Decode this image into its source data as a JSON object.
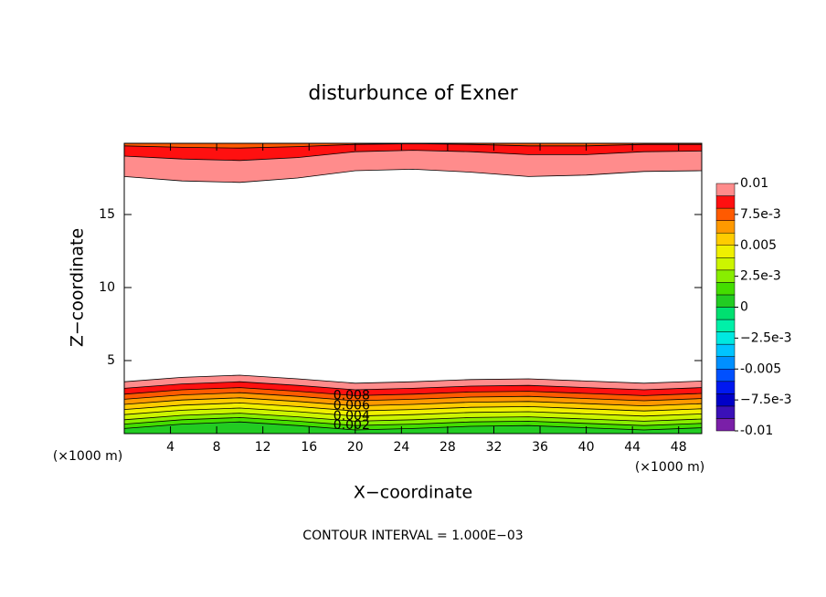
{
  "chart_data": {
    "type": "contour",
    "title": "disturbunce of Exner",
    "xlabel": "X−coordinate",
    "ylabel": "Z−coordinate",
    "unit_label": "(×1000 m)",
    "footnote": "CONTOUR INTERVAL = 1.000E−03",
    "xlim": [
      0,
      50
    ],
    "ylim": [
      0,
      19.875
    ],
    "xticks": [
      4,
      8,
      12,
      16,
      20,
      24,
      28,
      32,
      36,
      40,
      44,
      48
    ],
    "yticks": [
      5,
      10,
      15
    ],
    "x": [
      0,
      5,
      10,
      15,
      20,
      25,
      30,
      35,
      40,
      45,
      50
    ],
    "lower_contours": [
      {
        "level": 0.001,
        "z": [
          0.35,
          0.65,
          0.8,
          0.55,
          0.25,
          0.35,
          0.5,
          0.55,
          0.4,
          0.25,
          0.4
        ]
      },
      {
        "level": 0.002,
        "labeled": true,
        "z": [
          0.65,
          0.95,
          1.1,
          0.85,
          0.55,
          0.65,
          0.8,
          0.85,
          0.7,
          0.55,
          0.7
        ]
      },
      {
        "level": 0.003,
        "z": [
          0.95,
          1.25,
          1.4,
          1.15,
          0.85,
          0.95,
          1.1,
          1.15,
          1.0,
          0.85,
          1.0
        ]
      },
      {
        "level": 0.004,
        "labeled": true,
        "z": [
          1.3,
          1.6,
          1.75,
          1.5,
          1.2,
          1.3,
          1.45,
          1.5,
          1.35,
          1.2,
          1.35
        ]
      },
      {
        "level": 0.005,
        "z": [
          1.65,
          1.95,
          2.1,
          1.85,
          1.55,
          1.65,
          1.8,
          1.85,
          1.7,
          1.55,
          1.7
        ]
      },
      {
        "level": 0.006,
        "labeled": true,
        "z": [
          2.0,
          2.3,
          2.45,
          2.2,
          1.9,
          2.0,
          2.15,
          2.2,
          2.05,
          1.9,
          2.05
        ]
      },
      {
        "level": 0.007,
        "z": [
          2.35,
          2.65,
          2.8,
          2.55,
          2.25,
          2.35,
          2.5,
          2.55,
          2.4,
          2.25,
          2.4
        ]
      },
      {
        "level": 0.008,
        "labeled": true,
        "z": [
          2.7,
          3.0,
          3.15,
          2.9,
          2.6,
          2.7,
          2.85,
          2.9,
          2.75,
          2.6,
          2.75
        ]
      },
      {
        "level": 0.009,
        "z": [
          3.1,
          3.4,
          3.55,
          3.3,
          3.0,
          3.1,
          3.25,
          3.3,
          3.15,
          3.0,
          3.15
        ]
      },
      {
        "level": 0.01,
        "z": [
          3.55,
          3.85,
          4.0,
          3.75,
          3.45,
          3.55,
          3.7,
          3.75,
          3.6,
          3.45,
          3.6
        ]
      }
    ],
    "upper_contours": [
      {
        "level": 0.01,
        "z": [
          17.6,
          17.3,
          17.2,
          17.5,
          18.0,
          18.1,
          17.9,
          17.6,
          17.7,
          17.95,
          18.0
        ]
      },
      {
        "level": 0.009,
        "z": [
          19.0,
          18.8,
          18.7,
          18.9,
          19.3,
          19.4,
          19.3,
          19.1,
          19.1,
          19.3,
          19.35
        ]
      },
      {
        "level": 0.008,
        "z": [
          19.7,
          19.6,
          19.55,
          19.65,
          19.8,
          19.85,
          19.8,
          19.7,
          19.7,
          19.8,
          19.8
        ]
      }
    ],
    "colorbar": {
      "levels": [
        -0.01,
        -0.009,
        -0.008,
        -0.007,
        -0.006,
        -0.005,
        -0.004,
        -0.003,
        -0.002,
        -0.001,
        0,
        0.001,
        0.002,
        0.003,
        0.004,
        0.005,
        0.006,
        0.007,
        0.008,
        0.009,
        0.01
      ],
      "colors": [
        "#7a1fa8",
        "#3a10b8",
        "#0000c8",
        "#0018f0",
        "#0050ff",
        "#0090ff",
        "#00c4ff",
        "#00e8e0",
        "#00f0a8",
        "#00e070",
        "#22cc22",
        "#44dd00",
        "#88ee00",
        "#ccf500",
        "#f0f000",
        "#ffcc00",
        "#ff9900",
        "#ff5a00",
        "#ff1010",
        "#ff8c8c"
      ],
      "ticks": [
        0.01,
        {
          "value": 0.0075,
          "label": "7.5e-3"
        },
        0.005,
        {
          "value": 0.0025,
          "label": "2.5e-3"
        },
        0,
        {
          "value": -0.0025,
          "label": "−2.5e-3"
        },
        -0.005,
        {
          "value": -0.0075,
          "label": "−7.5e-3"
        },
        -0.01
      ]
    }
  }
}
